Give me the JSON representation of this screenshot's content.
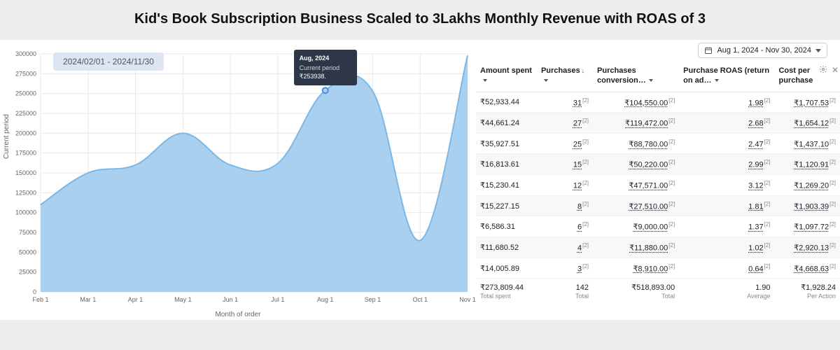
{
  "title": "Kid's Book Subscription Business Scaled to 3Lakhs Monthly Revenue with ROAS of 3",
  "chart": {
    "type": "area",
    "date_pill": "2024/02/01 - 2024/11/30",
    "y_axis_title": "Current period",
    "x_axis_title": "Month of order",
    "ylim": [
      0,
      300000
    ],
    "ytick_step": 25000,
    "y_ticks": [
      "0",
      "25000",
      "50000",
      "75000",
      "100000",
      "125000",
      "150000",
      "175000",
      "200000",
      "225000",
      "250000",
      "275000",
      "300000"
    ],
    "x_labels": [
      "Feb 1",
      "Mar 1",
      "Apr 1",
      "May 1",
      "Jun 1",
      "Jul 1",
      "Aug 1",
      "Sep 1",
      "Oct 1",
      "Nov 1"
    ],
    "values": [
      110000,
      150000,
      160000,
      200000,
      160000,
      162000,
      253938,
      253000,
      65000,
      298000
    ],
    "fill_color": "#a9d0ef",
    "line_color": "#7bb8e6",
    "grid_color": "#e6e9ed",
    "axis_text_color": "#666666",
    "background_color": "#ffffff",
    "line_width": 2,
    "marker": {
      "index": 6,
      "color": "#a9d0ef",
      "border_color": "#4a90d9"
    },
    "tooltip": {
      "label": "Aug, 2024",
      "sub": "Current period",
      "value": "₹253938.",
      "pos_index": 6
    }
  },
  "table": {
    "date_range_label": "Aug 1, 2024 - Nov 30, 2024",
    "columns": [
      {
        "label": "Amount spent",
        "sortable": true
      },
      {
        "label": "Purchases",
        "sortable": true,
        "sorted_asc": false,
        "sorted_indicator": true
      },
      {
        "label": "Purchases conversion…",
        "sortable": true
      },
      {
        "label": "Purchase ROAS (return on ad…",
        "sortable": true
      },
      {
        "label": "Cost per purchase",
        "sortable": false
      }
    ],
    "sup_marker": "[2]",
    "rows": [
      {
        "amount": "₹52,933.44",
        "purchases": "31",
        "conv": "₹104,550.00",
        "roas": "1.98",
        "cpp": "₹1,707.53"
      },
      {
        "amount": "₹44,661.24",
        "purchases": "27",
        "conv": "₹119,472.00",
        "roas": "2.68",
        "cpp": "₹1,654.12"
      },
      {
        "amount": "₹35,927.51",
        "purchases": "25",
        "conv": "₹88,780.00",
        "roas": "2.47",
        "cpp": "₹1,437.10"
      },
      {
        "amount": "₹16,813.61",
        "purchases": "15",
        "conv": "₹50,220.00",
        "roas": "2.99",
        "cpp": "₹1,120.91"
      },
      {
        "amount": "₹15,230.41",
        "purchases": "12",
        "conv": "₹47,571.00",
        "roas": "3.12",
        "cpp": "₹1,269.20"
      },
      {
        "amount": "₹15,227.15",
        "purchases": "8",
        "conv": "₹27,510.00",
        "roas": "1.81",
        "cpp": "₹1,903.39"
      },
      {
        "amount": "₹6,586.31",
        "purchases": "6",
        "conv": "₹9,000.00",
        "roas": "1.37",
        "cpp": "₹1,097.72"
      },
      {
        "amount": "₹11,680.52",
        "purchases": "4",
        "conv": "₹11,880.00",
        "roas": "1.02",
        "cpp": "₹2,920.13"
      },
      {
        "amount": "₹14,005.89",
        "purchases": "3",
        "conv": "₹8,910.00",
        "roas": "0.64",
        "cpp": "₹4,668.63"
      }
    ],
    "totals": {
      "amount": "₹273,809.44",
      "amount_sub": "Total spent",
      "purchases": "142",
      "purchases_sub": "Total",
      "conv": "₹518,893.00",
      "conv_sub": "Total",
      "roas": "1.90",
      "roas_sub": "Average",
      "cpp": "₹1,928.24",
      "cpp_sub": "Per Action"
    }
  }
}
